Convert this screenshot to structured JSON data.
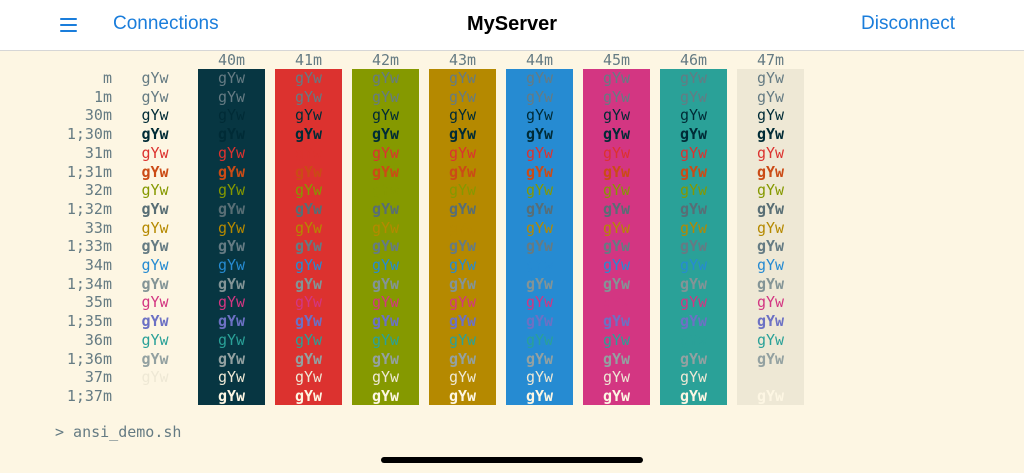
{
  "navbar": {
    "menu_icon": "hamburger-menu-icon",
    "connections_label": "Connections",
    "title": "MyServer",
    "disconnect_label": "Disconnect"
  },
  "terminal": {
    "sample_text": "gYw",
    "headers": [
      "40m",
      "41m",
      "42m",
      "43m",
      "44m",
      "45m",
      "46m",
      "47m"
    ],
    "row_labels": [
      "m",
      "1m",
      "30m",
      "1;30m",
      "31m",
      "1;31m",
      "32m",
      "1;32m",
      "33m",
      "1;33m",
      "34m",
      "1;34m",
      "35m",
      "1;35m",
      "36m",
      "1;36m",
      "37m",
      "1;37m"
    ],
    "bg_colors": [
      "#073642",
      "#dc322f",
      "#859900",
      "#b58900",
      "#268bd2",
      "#d33682",
      "#2aa198",
      "#eee8d5"
    ],
    "fg_colors": [
      "#657b83",
      "#657b83",
      "#002b36",
      "#002b36",
      "#dc322f",
      "#cb4b16",
      "#859900",
      "#586e75",
      "#b58900",
      "#657b83",
      "#268bd2",
      "#839496",
      "#d33682",
      "#6c71c4",
      "#2aa198",
      "#93a1a1",
      "#eee8d5",
      "#fdf6e3"
    ],
    "prompt": "> ansi_demo.sh"
  },
  "colors": {
    "background": "#fdf6e3",
    "accent": "#1a7ddb"
  }
}
